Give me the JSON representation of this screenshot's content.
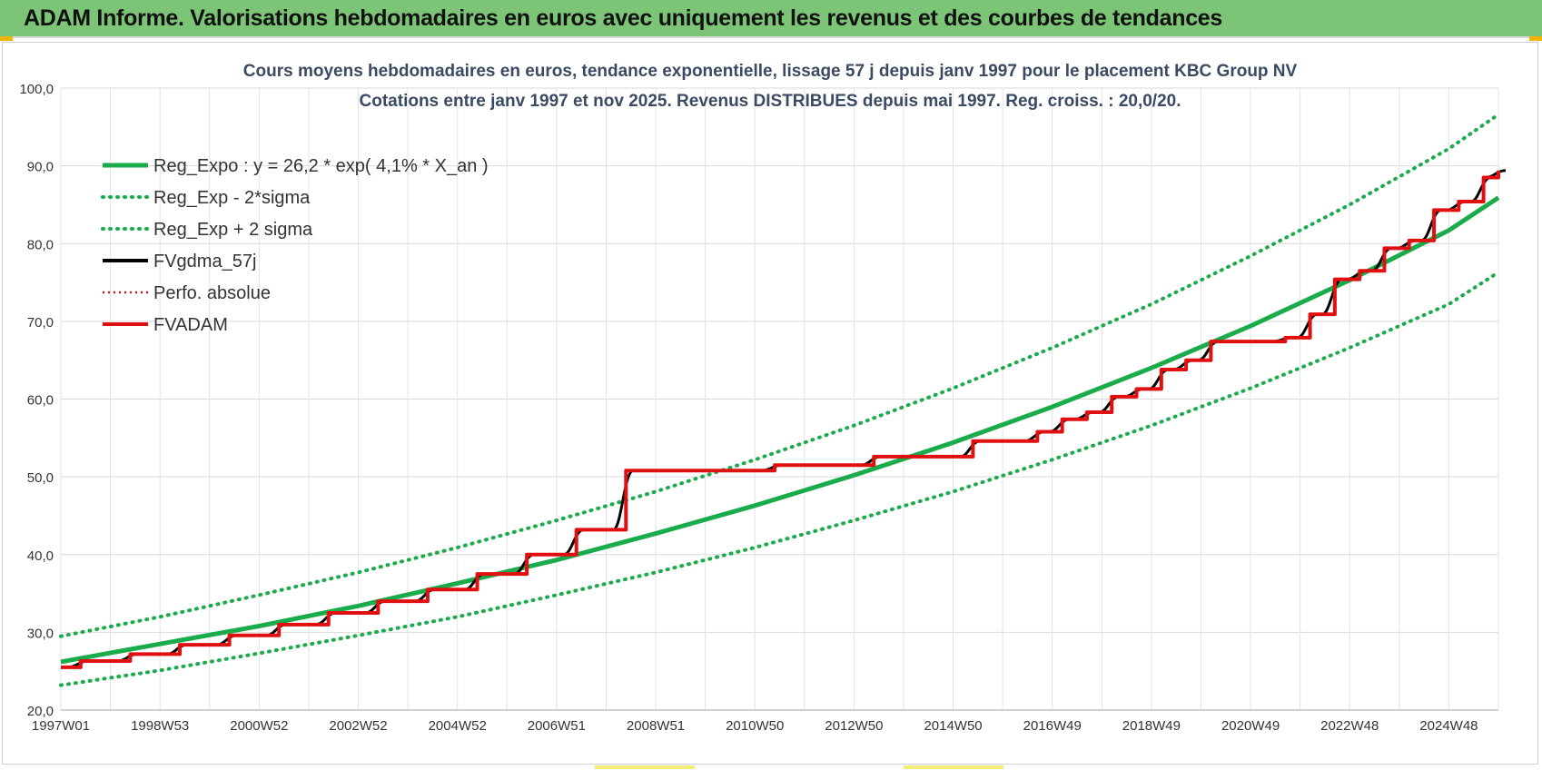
{
  "banner": {
    "title": "ADAM Informe. Valorisations hebdomadaires en euros avec uniquement les revenus et des courbes de tendances",
    "background": "#7cc576"
  },
  "chart_data": {
    "type": "line",
    "title": [
      "Cours moyens hebdomadaires en euros, tendance exponentielle, lissage 57 j depuis janv 1997  pour le placement KBC Group NV",
      "Cotations entre janv 1997 et nov 2025. Revenus DISTRIBUES depuis mai 1997.  Reg. croiss. : 20,0/20."
    ],
    "xlabel": "",
    "ylabel": "",
    "ylim": [
      20,
      100
    ],
    "yticks": [
      "20,0",
      "30,0",
      "40,0",
      "50,0",
      "60,0",
      "70,0",
      "80,0",
      "90,0",
      "100,0"
    ],
    "xlim": [
      1997.0,
      2026.0
    ],
    "xticks": [
      {
        "label": "1997W01",
        "x": 1997.0
      },
      {
        "label": "1998W53",
        "x": 1999.0
      },
      {
        "label": "2000W52",
        "x": 2001.0
      },
      {
        "label": "2002W52",
        "x": 2003.0
      },
      {
        "label": "2004W52",
        "x": 2005.0
      },
      {
        "label": "2006W51",
        "x": 2007.0
      },
      {
        "label": "2008W51",
        "x": 2009.0
      },
      {
        "label": "2010W50",
        "x": 2011.0
      },
      {
        "label": "2012W50",
        "x": 2013.0
      },
      {
        "label": "2014W50",
        "x": 2015.0
      },
      {
        "label": "2016W49",
        "x": 2017.0
      },
      {
        "label": "2018W49",
        "x": 2019.0
      },
      {
        "label": "2020W49",
        "x": 2021.0
      },
      {
        "label": "2022W48",
        "x": 2023.0
      },
      {
        "label": "2024W48",
        "x": 2025.0
      }
    ],
    "grid": true,
    "legend_position": "top-left",
    "series": [
      {
        "name": "Reg_Expo : y = 26,2 * exp( 4,1% *  X_an )",
        "color": "#1aab4b",
        "style": "solid",
        "x": [
          1997,
          1999,
          2001,
          2003,
          2005,
          2007,
          2009,
          2011,
          2013,
          2015,
          2017,
          2019,
          2021,
          2023,
          2025,
          2026
        ],
        "values": [
          26.2,
          28.5,
          30.8,
          33.4,
          36.3,
          39.3,
          42.7,
          46.3,
          50.2,
          54.4,
          59.0,
          64.0,
          69.4,
          75.3,
          81.7,
          85.9
        ]
      },
      {
        "name": "Reg_Exp - 2*sigma",
        "color": "#1aab4b",
        "style": "dotted",
        "x": [
          1997,
          1999,
          2001,
          2003,
          2005,
          2007,
          2009,
          2011,
          2013,
          2015,
          2017,
          2019,
          2021,
          2023,
          2025,
          2026
        ],
        "values": [
          23.2,
          25.1,
          27.3,
          29.6,
          32.0,
          34.8,
          37.7,
          40.9,
          44.4,
          48.1,
          52.2,
          56.6,
          61.4,
          66.6,
          72.2,
          76.3
        ]
      },
      {
        "name": "Reg_Exp + 2 sigma",
        "color": "#1aab4b",
        "style": "dotted",
        "x": [
          1997,
          1999,
          2001,
          2003,
          2005,
          2007,
          2009,
          2011,
          2013,
          2015,
          2017,
          2019,
          2021,
          2023,
          2025,
          2026
        ],
        "values": [
          29.5,
          32.0,
          34.8,
          37.7,
          40.9,
          44.4,
          48.1,
          52.2,
          56.6,
          61.4,
          66.6,
          72.2,
          78.4,
          85.0,
          92.2,
          96.6
        ]
      },
      {
        "name": "FVgdma_57j",
        "color": "#000000",
        "style": "solid",
        "x": [
          1997.0,
          1997.4,
          1998.4,
          1999.4,
          2000.4,
          2001.4,
          2002.4,
          2003.4,
          2004.4,
          2005.4,
          2006.4,
          2007.4,
          2008.4,
          2011.4,
          2013.4,
          2015.4,
          2016.7,
          2017.2,
          2017.7,
          2018.2,
          2018.7,
          2019.2,
          2019.7,
          2020.2,
          2020.7,
          2021.7,
          2022.2,
          2022.7,
          2023.2,
          2023.7,
          2024.2,
          2024.7,
          2025.2,
          2025.7,
          2026.0
        ],
        "values": [
          25.5,
          26.3,
          27.2,
          28.4,
          29.6,
          31.0,
          32.5,
          34.0,
          35.5,
          37.5,
          40.0,
          43.2,
          50.8,
          51.5,
          52.6,
          54.6,
          55.8,
          57.4,
          58.3,
          60.3,
          61.3,
          63.8,
          65.0,
          67.4,
          67.4,
          67.9,
          70.9,
          75.4,
          76.5,
          79.4,
          80.4,
          84.3,
          85.4,
          88.5,
          89.4
        ]
      },
      {
        "name": "Perfo. absolue",
        "color": "#e01010",
        "style": "dotted",
        "x": [
          1997.0,
          1997.4,
          1998.4,
          1999.4,
          2000.4,
          2001.4,
          2002.4,
          2003.4,
          2004.4,
          2005.4,
          2006.4,
          2007.4,
          2008.4,
          2011.4,
          2013.4,
          2015.4,
          2016.7,
          2017.2,
          2017.7,
          2018.2,
          2018.7,
          2019.2,
          2019.7,
          2020.2,
          2020.7,
          2021.7,
          2022.2,
          2022.7,
          2023.2,
          2023.7,
          2024.2,
          2024.7,
          2025.2,
          2025.7,
          2026.0
        ],
        "values": [
          25.5,
          26.3,
          27.2,
          28.4,
          29.6,
          31.0,
          32.5,
          34.0,
          35.5,
          37.5,
          40.0,
          43.2,
          50.8,
          51.5,
          52.6,
          54.6,
          55.8,
          57.4,
          58.3,
          60.3,
          61.3,
          63.8,
          65.0,
          67.4,
          67.4,
          67.9,
          70.9,
          75.4,
          76.5,
          79.4,
          80.4,
          84.3,
          85.4,
          88.5,
          89.4
        ]
      },
      {
        "name": "FVADAM",
        "color": "#e01010",
        "style": "step",
        "x": [
          1997.0,
          1997.4,
          1998.4,
          1999.4,
          2000.4,
          2001.4,
          2002.4,
          2003.4,
          2004.4,
          2005.4,
          2006.4,
          2007.4,
          2008.4,
          2011.4,
          2013.4,
          2015.4,
          2016.7,
          2017.2,
          2017.7,
          2018.2,
          2018.7,
          2019.2,
          2019.7,
          2020.2,
          2020.7,
          2021.7,
          2022.2,
          2022.7,
          2023.2,
          2023.7,
          2024.2,
          2024.7,
          2025.2,
          2025.7,
          2026.0
        ],
        "values": [
          25.5,
          26.3,
          27.2,
          28.4,
          29.6,
          31.0,
          32.5,
          34.0,
          35.5,
          37.5,
          40.0,
          43.2,
          50.8,
          51.5,
          52.6,
          54.6,
          55.8,
          57.4,
          58.3,
          60.3,
          61.3,
          63.8,
          65.0,
          67.4,
          67.4,
          67.9,
          70.9,
          75.4,
          76.5,
          79.4,
          80.4,
          84.3,
          85.4,
          88.5,
          89.4
        ]
      }
    ]
  }
}
